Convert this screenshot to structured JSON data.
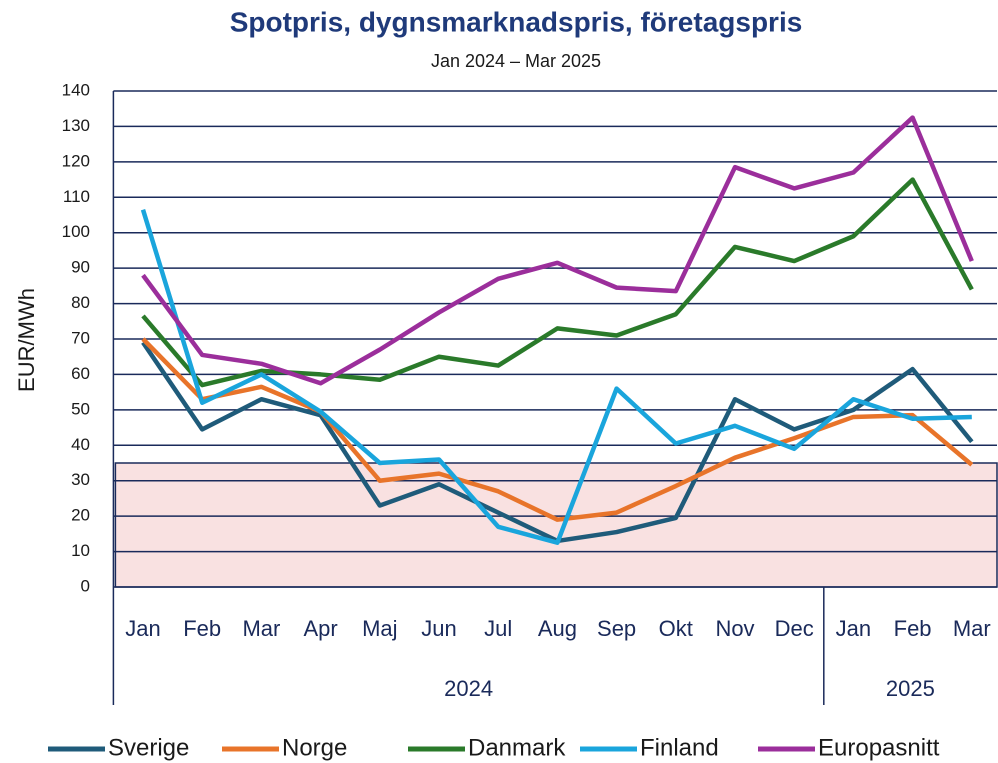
{
  "chart_data": {
    "type": "line",
    "title": "Spotpris, dygnsmarknadspris, företagspris",
    "subtitle": "Jan 2024 – Mar 2025",
    "y_label": "EUR/MWh",
    "categories": [
      "Jan",
      "Feb",
      "Mar",
      "Apr",
      "Maj",
      "Jun",
      "Jul",
      "Aug",
      "Sep",
      "Okt",
      "Nov",
      "Dec",
      "Jan",
      "Feb",
      "Mar"
    ],
    "x_groups": [
      {
        "label": "2024",
        "count": 12
      },
      {
        "label": "2025",
        "count": 3
      }
    ],
    "ylim": [
      0,
      140
    ],
    "yticks": [
      0,
      10,
      20,
      30,
      40,
      50,
      60,
      70,
      80,
      90,
      100,
      110,
      120,
      130,
      140
    ],
    "grid": true,
    "band": {
      "from": 0,
      "to": 35,
      "color": "#f9e1e1"
    },
    "series": [
      {
        "name": "Sverige",
        "color": "#1f5b7a",
        "values": [
          69,
          44.5,
          53,
          48.5,
          23,
          29,
          21,
          13,
          15.5,
          19.5,
          53,
          44.5,
          50,
          61.5,
          41
        ]
      },
      {
        "name": "Norge",
        "color": "#e8742a",
        "values": [
          70,
          53,
          56.5,
          49.5,
          30,
          32,
          27,
          19,
          21,
          28.5,
          36.5,
          42,
          48,
          48.5,
          34.5
        ]
      },
      {
        "name": "Danmark",
        "color": "#2a7a2a",
        "values": [
          76.5,
          57,
          61,
          60,
          58.5,
          65,
          62.5,
          73,
          71,
          77,
          96,
          92,
          99,
          115,
          84
        ]
      },
      {
        "name": "Finland",
        "color": "#1aa5dc",
        "values": [
          106.5,
          52,
          60,
          49.5,
          35,
          36,
          17,
          12.5,
          56,
          40.5,
          45.5,
          39,
          53,
          47.5,
          48
        ]
      },
      {
        "name": "Europasnitt",
        "color": "#9b2e9b",
        "values": [
          88,
          65.5,
          63,
          57.5,
          67,
          77.5,
          87,
          91.5,
          84.5,
          83.5,
          118.5,
          112.5,
          117,
          132.5,
          92
        ]
      }
    ],
    "legend": "bottom"
  }
}
